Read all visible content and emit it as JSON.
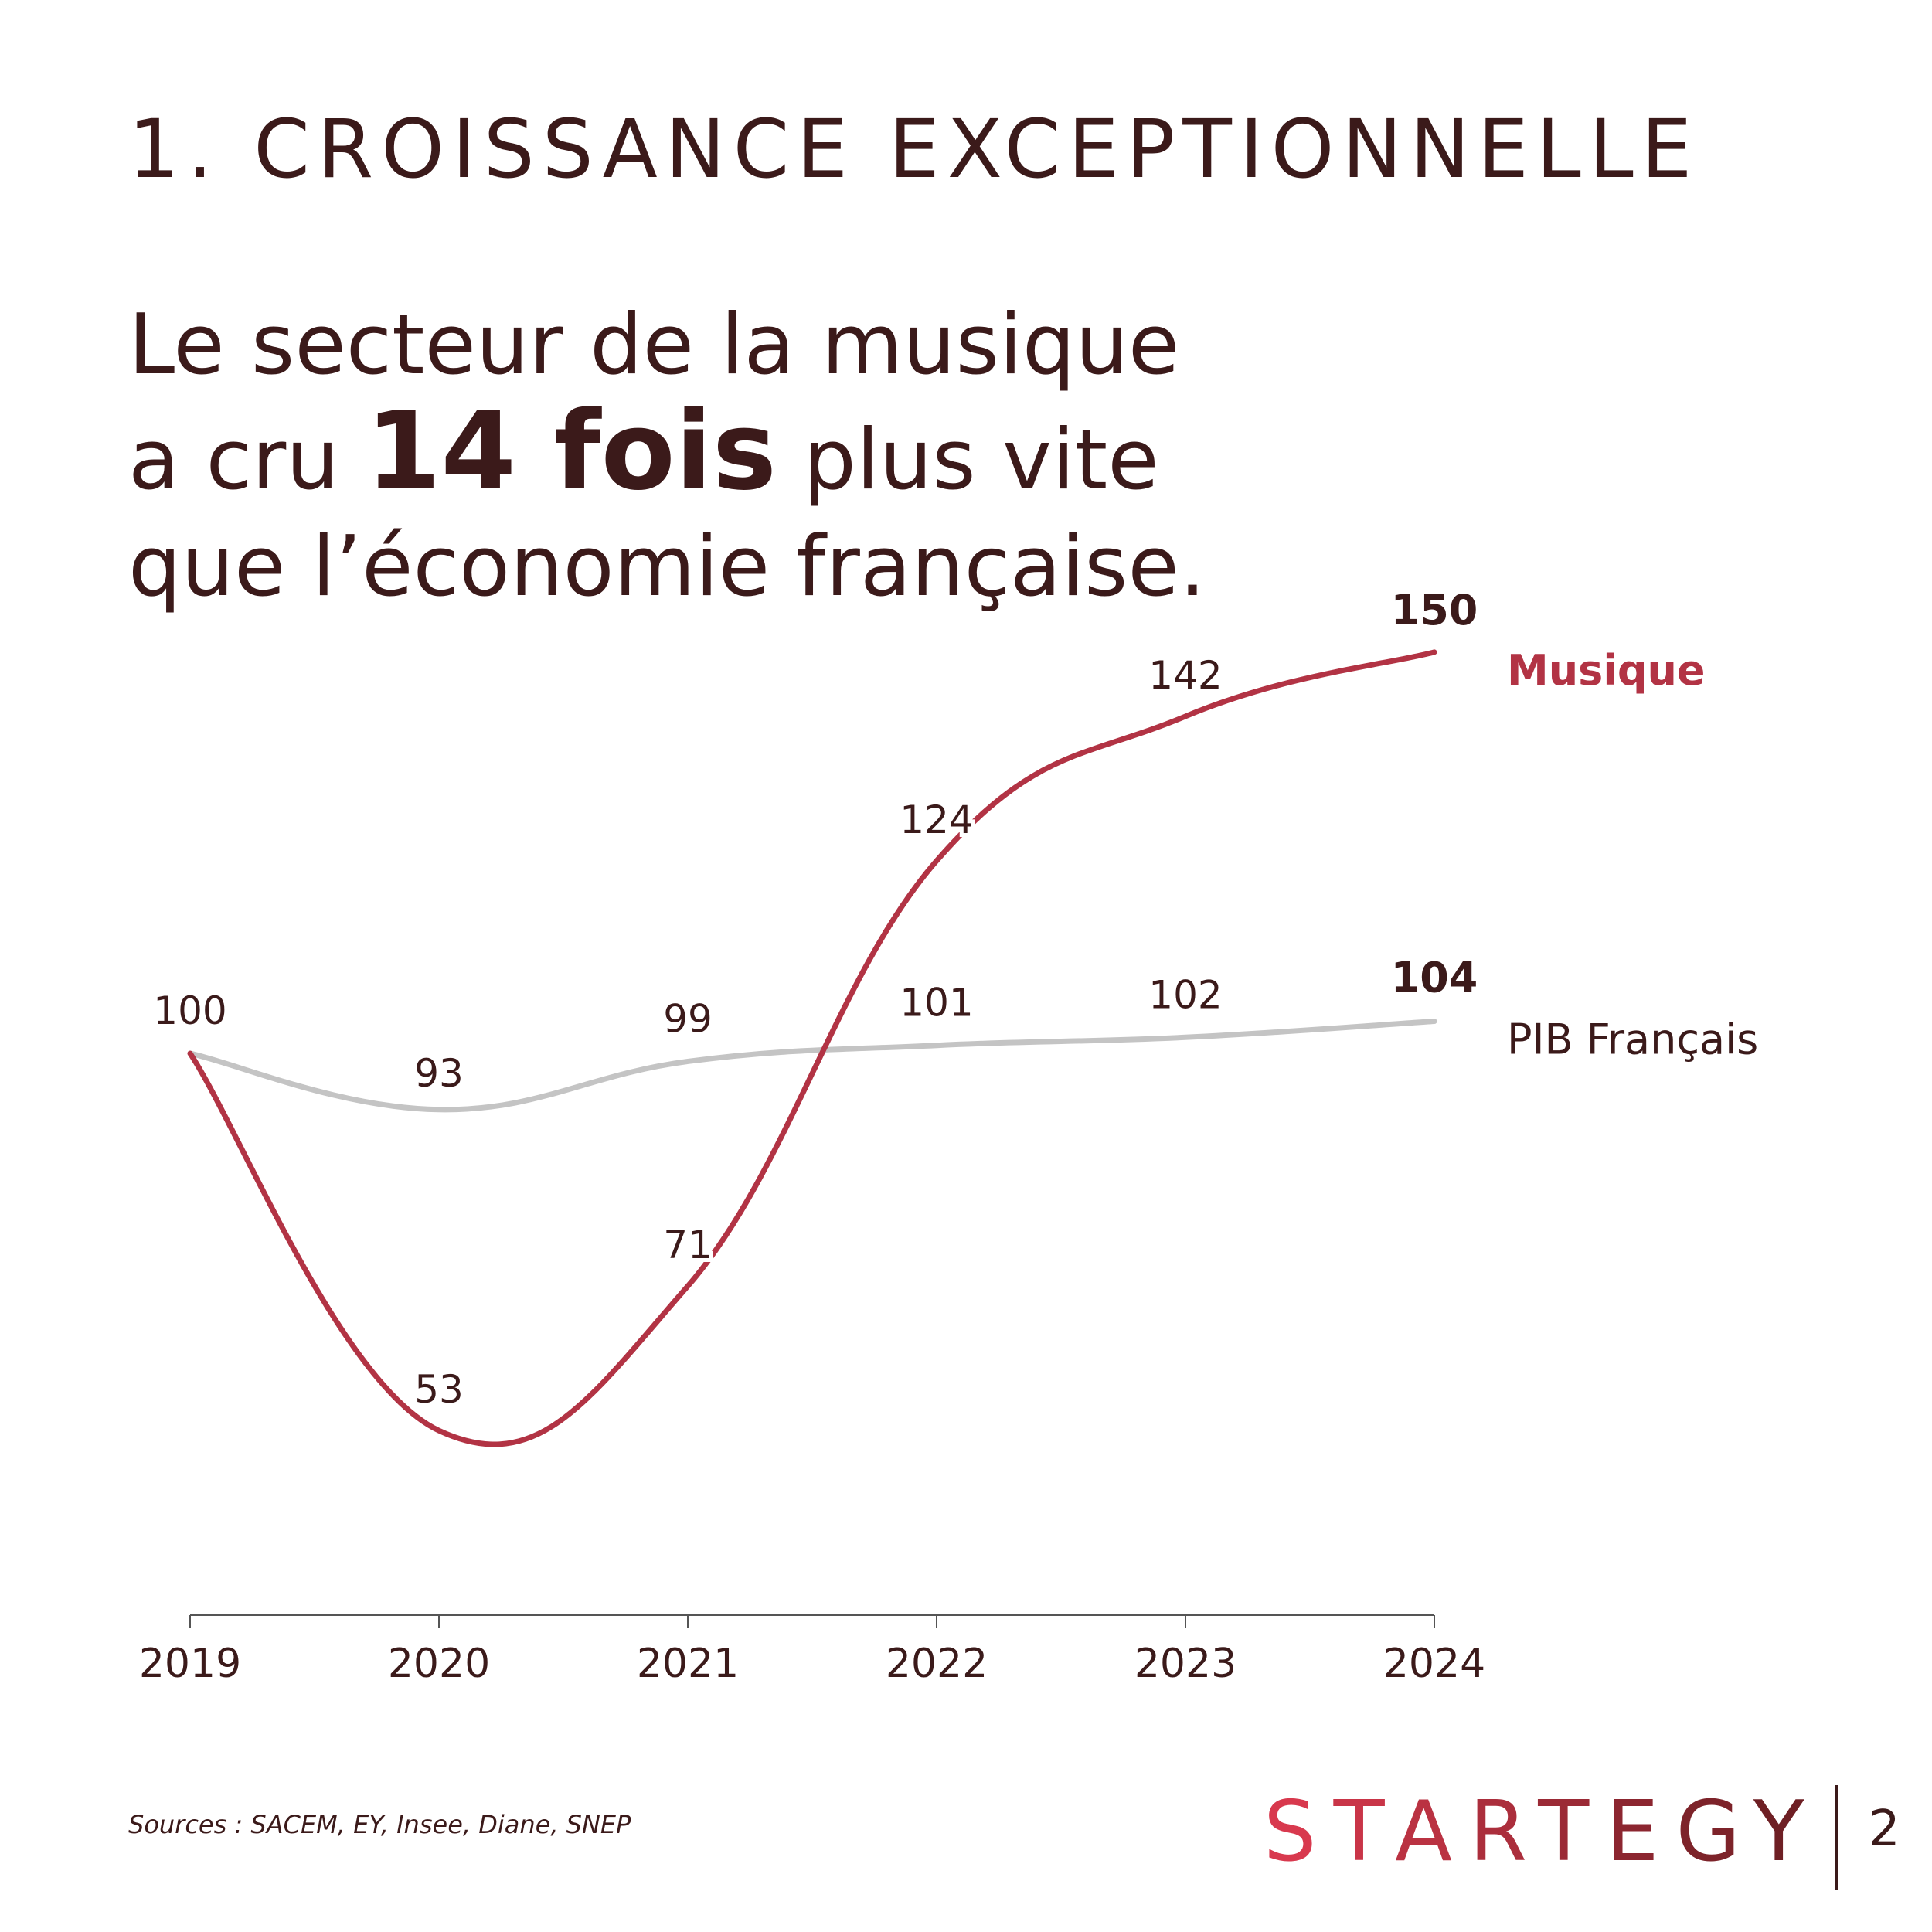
{
  "header": {
    "section_title": "1. CROISSANCE EXCEPTIONNELLE"
  },
  "headline": {
    "line1": "Le secteur de la musique",
    "line2_before": "a cru ",
    "line2_emphasis": "14 fois",
    "line2_after": " plus vite",
    "line3": "que l’économie française."
  },
  "chart_data": {
    "type": "line",
    "x": [
      "2019",
      "2020",
      "2021",
      "2022",
      "2023",
      "2024"
    ],
    "ylim": [
      30,
      160
    ],
    "grid": false,
    "legend": "right",
    "series": [
      {
        "name": "Musique",
        "color": "#b23344",
        "values": [
          100,
          53,
          71,
          124,
          142,
          150
        ],
        "labels": [
          "",
          "53",
          "71",
          "124",
          "142",
          "150"
        ]
      },
      {
        "name": "PIB Français",
        "color": "#c4c4c4",
        "values": [
          100,
          93,
          99,
          101,
          102,
          104
        ],
        "labels": [
          "100",
          "93",
          "99",
          "101",
          "102",
          "104"
        ]
      }
    ]
  },
  "footer": {
    "sources": "Sources : SACEM, EY, Insee, Diane, SNEP",
    "brand": "STARTEGY",
    "page_number": "2"
  },
  "colors": {
    "text": "#3b1a1a",
    "accent": "#b23344",
    "pib": "#c4c4c4",
    "brand_start": "#d8394e",
    "brand_end": "#6e1f24"
  }
}
